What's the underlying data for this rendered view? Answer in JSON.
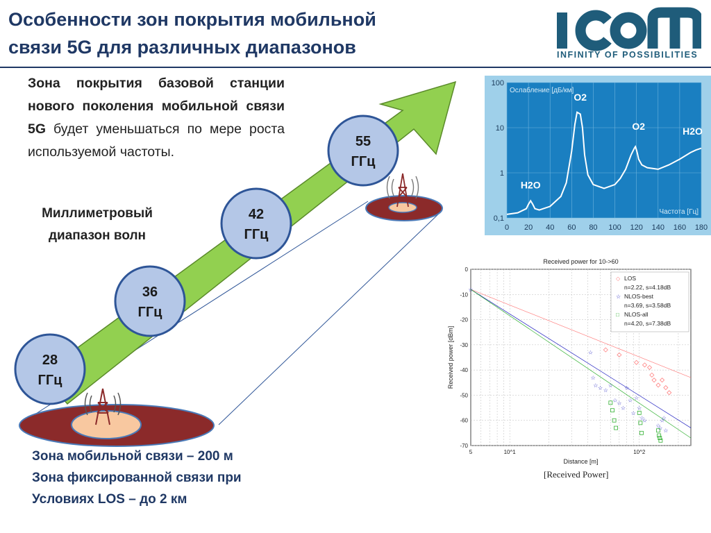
{
  "title": {
    "line1": "Особенности зон покрытия мобильной",
    "line2": "связи 5G для различных диапазонов"
  },
  "logo": {
    "name": "ICOM",
    "tagline": "INFINITY OF POSSIBILITIES"
  },
  "paragraph": {
    "bold": "Зона покрытия базовой станции нового поколения мобильной связи 5G",
    "normal": "будет уменьшаться по мере роста используемой частоты."
  },
  "mm_label": {
    "line1": "Миллиметровый",
    "line2": "диапазон волн"
  },
  "bands": [
    {
      "value": "28",
      "unit": "ГГц"
    },
    {
      "value": "36",
      "unit": "ГГц"
    },
    {
      "value": "42",
      "unit": "ГГц"
    },
    {
      "value": "55",
      "unit": "ГГц"
    }
  ],
  "bottom_text": {
    "line1": "Зона мобильной связи – 200 м",
    "line2": "Зона фиксированной связи при",
    "line3": "Условиях LOS – до 2 км"
  },
  "colors": {
    "title": "#1f3864",
    "arrow": "#92d050",
    "circle_fill": "#b4c7e7",
    "circle_stroke": "#2e5597",
    "zone_outer": "#8b2a2a",
    "zone_inner": "#f8c8a0",
    "attn_bg": "#9fd0ea",
    "attn_plot": "#1a7fc1"
  },
  "chart_data": [
    {
      "type": "line",
      "ylabel": "Ослабление [дБ/км]",
      "xlabel": "Частота [Гц]",
      "yscale": "log",
      "xlim": [
        0,
        180
      ],
      "ylim": [
        0.1,
        100
      ],
      "xticks": [
        "0",
        "20",
        "40",
        "60",
        "80",
        "100",
        "120",
        "140",
        "160",
        "180"
      ],
      "yticks": [
        "100",
        "10",
        "1",
        "0,1"
      ],
      "annotations": [
        {
          "text": "O2",
          "x": 68,
          "y": 40
        },
        {
          "text": "O2",
          "x": 122,
          "y": 9
        },
        {
          "text": "H2O",
          "x": 172,
          "y": 7
        },
        {
          "text": "H2O",
          "x": 22,
          "y": 0.45
        }
      ],
      "x": [
        0,
        10,
        18,
        20,
        22,
        24,
        26,
        30,
        40,
        50,
        55,
        60,
        63,
        65,
        68,
        70,
        72,
        75,
        80,
        90,
        100,
        105,
        110,
        115,
        118,
        119,
        120,
        121,
        122,
        125,
        130,
        140,
        150,
        160,
        170,
        175,
        180
      ],
      "y": [
        0.12,
        0.13,
        0.16,
        0.2,
        0.24,
        0.2,
        0.16,
        0.15,
        0.18,
        0.3,
        0.6,
        3,
        12,
        22,
        20,
        10,
        2.5,
        0.9,
        0.55,
        0.45,
        0.55,
        0.75,
        1.2,
        2.5,
        3.5,
        3.8,
        3.2,
        2.6,
        2,
        1.5,
        1.3,
        1.2,
        1.5,
        2,
        2.8,
        3.2,
        3.5
      ]
    },
    {
      "type": "scatter",
      "title": "Received power for 10->60",
      "xlabel": "Distance [m]",
      "ylabel": "Received power [dBm]",
      "xscale": "log",
      "xlim": [
        5,
        250
      ],
      "ylim": [
        -70,
        0
      ],
      "xticks": [
        "5",
        "10^1",
        "10^2"
      ],
      "yticks": [
        "0",
        "-10",
        "-20",
        "-30",
        "-40",
        "-50",
        "-60",
        "-70"
      ],
      "legend": [
        {
          "marker": "◇",
          "label": "LOS",
          "color": "#ff8080"
        },
        {
          "marker": "",
          "label": "n=2.22, s=4.18dB",
          "color": "#ff8080"
        },
        {
          "marker": "☆",
          "label": "NLOS-best",
          "color": "#2020c0"
        },
        {
          "marker": "",
          "label": "n=3.69, s=3.58dB",
          "color": "#2020c0"
        },
        {
          "marker": "□",
          "label": "NLOS-all",
          "color": "#30b030"
        },
        {
          "marker": "",
          "label": "n=4.20, s=7.38dB",
          "color": "#30b030"
        }
      ],
      "series": [
        {
          "name": "LOS",
          "color": "#ff8080",
          "marker": "diamond",
          "x": [
            55,
            70,
            95,
            110,
            120,
            125,
            130,
            140,
            150,
            160,
            170
          ],
          "y": [
            -32,
            -34,
            -37,
            -38,
            -39,
            -42,
            -44,
            -46,
            -44,
            -47,
            -49
          ]
        },
        {
          "name": "NLOS-best",
          "color": "#2020c0",
          "marker": "star",
          "x": [
            5,
            42,
            44,
            46,
            50,
            55,
            60,
            65,
            70,
            75,
            80,
            85,
            90,
            95,
            100,
            105,
            110,
            140,
            145,
            150,
            155,
            160
          ],
          "y": [
            -8,
            -33,
            -43,
            -46,
            -47,
            -48,
            -46,
            -52,
            -53,
            -55,
            -47,
            -52,
            -57,
            -51,
            -55,
            -59,
            -60,
            -62,
            -63,
            -60,
            -59,
            -64
          ]
        },
        {
          "name": "NLOS-all",
          "color": "#30b030",
          "marker": "square",
          "x": [
            60,
            62,
            64,
            66,
            100,
            102,
            104,
            140,
            142,
            144,
            146
          ],
          "y": [
            -53,
            -56,
            -60,
            -63,
            -57,
            -61,
            -65,
            -64,
            -66,
            -67,
            -68
          ]
        }
      ],
      "fits": [
        {
          "name": "LOS fit",
          "color": "#ff8080",
          "x": [
            5,
            250
          ],
          "y": [
            -8,
            -43
          ]
        },
        {
          "name": "NLOS-best fit",
          "color": "#2020c0",
          "x": [
            5,
            250
          ],
          "y": [
            -8,
            -63
          ]
        },
        {
          "name": "NLOS-all fit",
          "color": "#30b030",
          "x": [
            5,
            250
          ],
          "y": [
            -8,
            -67
          ]
        }
      ]
    }
  ],
  "rp_caption": "[Received Power]"
}
